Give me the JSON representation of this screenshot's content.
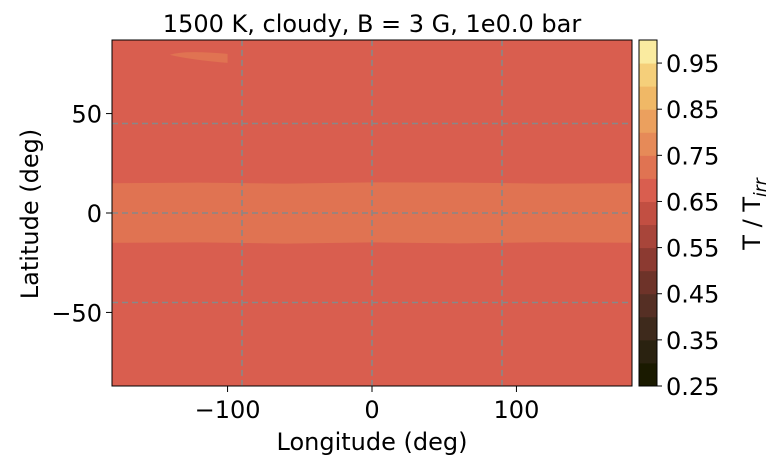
{
  "chart_data": {
    "type": "heatmap",
    "title": "1500 K, cloudy, B = 3 G, 1e0.0 bar",
    "xlabel": "Longitude (deg)",
    "ylabel": "Latitude (deg)",
    "xlim": [
      -180,
      180
    ],
    "ylim": [
      -87,
      87
    ],
    "x_ticks": [
      -100,
      0,
      100
    ],
    "x_tick_labels": [
      "−100",
      "0",
      "100"
    ],
    "y_ticks": [
      50,
      0,
      -50
    ],
    "y_tick_labels": [
      "50",
      "0",
      "−50"
    ],
    "grid": true,
    "grid_lines": {
      "x": [
        -90,
        0,
        90
      ],
      "y": [
        45,
        0,
        -45
      ],
      "style": "dashed",
      "color": "#888888"
    },
    "colorbar": {
      "label": "T / T",
      "label_subscript": "irr",
      "range": [
        0.25,
        1.0
      ],
      "levels": [
        0.25,
        0.3,
        0.35,
        0.4,
        0.45,
        0.5,
        0.55,
        0.6,
        0.65,
        0.7,
        0.75,
        0.8,
        0.85,
        0.9,
        0.95,
        1.0
      ],
      "colors": [
        "#1a1a00",
        "#2a2210",
        "#3e2a1c",
        "#552f24",
        "#6e3329",
        "#8c3a31",
        "#a8453a",
        "#c24f42",
        "#d95e4f",
        "#e07352",
        "#e68a58",
        "#eba05e",
        "#f0b866",
        "#f5cf7a",
        "#faeba0"
      ],
      "ticks": [
        0.95,
        0.85,
        0.75,
        0.65,
        0.55,
        0.45,
        0.35,
        0.25
      ],
      "tick_labels": [
        "0.95",
        "0.85",
        "0.75",
        "0.65",
        "0.55",
        "0.45",
        "0.35",
        "0.25"
      ]
    },
    "regions": [
      {
        "name": "background",
        "value_range": [
          0.65,
          0.7
        ],
        "lat_range": [
          -87,
          87
        ],
        "lon_range": [
          -180,
          180
        ]
      },
      {
        "name": "equatorial-band",
        "value_range": [
          0.7,
          0.75
        ],
        "lat_range": [
          -15,
          15
        ],
        "lon_range": [
          -180,
          180
        ]
      },
      {
        "name": "high-latitude-patch",
        "value_range": [
          0.7,
          0.75
        ],
        "lat_range": [
          75,
          81
        ],
        "lon_range": [
          -140,
          -100
        ]
      }
    ]
  }
}
